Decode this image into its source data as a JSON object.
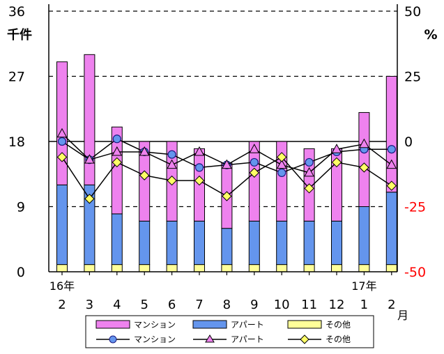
{
  "chart_data": {
    "type": "bar",
    "months": [
      "2",
      "3",
      "4",
      "5",
      "6",
      "7",
      "8",
      "9",
      "10",
      "11",
      "12",
      "1",
      "2"
    ],
    "year_labels": [
      {
        "index": 0,
        "text": "16年"
      },
      {
        "index": 11,
        "text": "17年"
      }
    ],
    "month_unit": "月",
    "left_axis": {
      "unit": "千件",
      "range": [
        0,
        36
      ],
      "ticks": [
        "0",
        "9",
        "18",
        "27",
        "36"
      ]
    },
    "right_axis": {
      "unit": "%",
      "range": [
        -50,
        50
      ],
      "ticks": [
        "-50",
        "-25",
        "0",
        "25",
        "50"
      ]
    },
    "stacked_bars": [
      {
        "name": "その他",
        "color": "#ffff99",
        "values": [
          1,
          1,
          1,
          1,
          1,
          1,
          1,
          1,
          1,
          1,
          1,
          1,
          1
        ]
      },
      {
        "name": "アパート",
        "color": "#6495ed",
        "values": [
          11,
          11,
          7,
          6,
          6,
          6,
          5,
          6,
          6,
          6,
          6,
          8,
          10
        ]
      },
      {
        "name": "マンション",
        "color": "#ee82ee",
        "values": [
          17,
          18,
          12,
          11,
          11,
          10,
          9,
          11,
          11,
          10,
          10,
          13,
          16
        ]
      }
    ],
    "lines": [
      {
        "name": "マンション",
        "marker": "circle",
        "color": "#6495ed",
        "values": [
          0,
          -7,
          1,
          -4,
          -5,
          -10,
          -9,
          -8,
          -12,
          -8,
          -4,
          -3,
          -3
        ]
      },
      {
        "name": "アパート",
        "marker": "triangle",
        "color": "#ee82ee",
        "values": [
          3,
          -7,
          -4,
          -4,
          -9,
          -4,
          -9,
          -3,
          -9,
          -12,
          -3,
          -1,
          -9
        ]
      },
      {
        "name": "その他",
        "marker": "diamond",
        "color": "#ffff66",
        "values": [
          -6,
          -22,
          -8,
          -13,
          -15,
          -15,
          -21,
          -12,
          -6,
          -18,
          -8,
          -10,
          -17
        ]
      }
    ],
    "legend": {
      "placement": "bottom",
      "bar_labels": [
        "マンション",
        "アパート",
        "その他"
      ],
      "line_labels": [
        "マンション",
        "アパート",
        "その他"
      ]
    },
    "colors": {
      "right_axis_negative": "#ff0000"
    }
  }
}
